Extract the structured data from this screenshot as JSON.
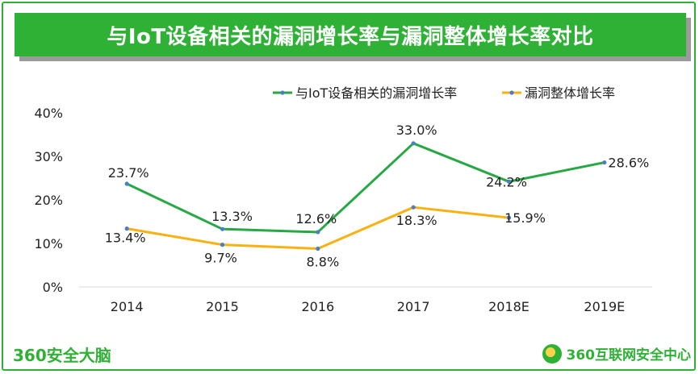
{
  "title": "与IoT设备相关的漏洞增长率与漏洞整体增长率对比",
  "footer": {
    "left_brand": "360安全大脑",
    "right_brand": "360互联网安全中心"
  },
  "colors": {
    "accent": "#2eb135",
    "series_iot": "#27a844",
    "series_overall": "#f9b112",
    "marker": "#4a7fc1"
  },
  "chart_data": {
    "type": "line",
    "title": "与IoT设备相关的漏洞增长率与漏洞整体增长率对比",
    "categories": [
      "2014",
      "2015",
      "2016",
      "2017",
      "2018E",
      "2019E"
    ],
    "y_ticks": [
      "0%",
      "10%",
      "20%",
      "30%",
      "40%"
    ],
    "ylim": [
      0,
      40
    ],
    "legend_position": "top-center",
    "series": [
      {
        "name": "与IoT设备相关的漏洞增长率",
        "values": [
          23.7,
          13.3,
          12.6,
          33.0,
          24.2,
          28.6
        ],
        "labels": [
          "23.7%",
          "13.3%",
          "12.6%",
          "33.0%",
          "24.2%",
          "28.6%"
        ]
      },
      {
        "name": "漏洞整体增长率",
        "values": [
          13.4,
          9.7,
          8.8,
          18.3,
          15.9,
          null
        ],
        "labels": [
          "13.4%",
          "9.7%",
          "8.8%",
          "18.3%",
          "15.9%",
          null
        ]
      }
    ]
  }
}
